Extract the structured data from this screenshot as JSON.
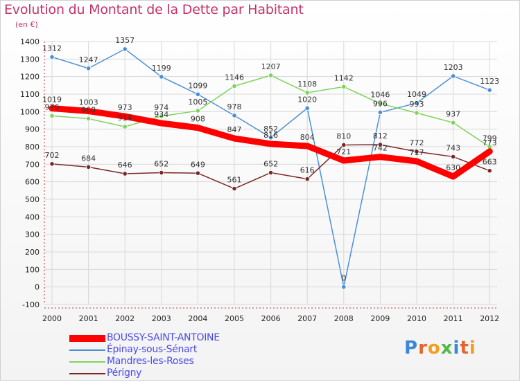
{
  "title": "Evolution du Montant de la Dette par Habitant",
  "subtitle": "(en €)",
  "brand": {
    "text": "Proxiti",
    "colors": [
      "#3a86d8",
      "#e8632b",
      "#f0a01e",
      "#52b849",
      "#3a86d8",
      "#e8632b",
      "#f0a01e"
    ]
  },
  "chart_data": {
    "type": "line",
    "x": [
      "2000",
      "2001",
      "2002",
      "2003",
      "2004",
      "2005",
      "2006",
      "2007",
      "2008",
      "2009",
      "2010",
      "2011",
      "2012"
    ],
    "ylim": [
      -100,
      1400
    ],
    "yticks": [
      -100,
      0,
      100,
      200,
      300,
      400,
      500,
      600,
      700,
      800,
      900,
      1000,
      1100,
      1200,
      1300,
      1400
    ],
    "grid": true,
    "legend_position": "bottom-left",
    "series": [
      {
        "name": "BOUSSY-SAINT-ANTOINE",
        "color": "#ff0000",
        "values": [
          1019,
          1003,
          973,
          934,
          908,
          847,
          816,
          804,
          721,
          742,
          717,
          630,
          773
        ]
      },
      {
        "name": "Épinay-sous-Sénart",
        "color": "#4a90d9",
        "values": [
          1312,
          1247,
          1357,
          1199,
          1099,
          978,
          852,
          1020,
          0,
          996,
          1049,
          1203,
          1123
        ]
      },
      {
        "name": "Mandres-les-Roses",
        "color": "#7ed35a",
        "values": [
          976,
          960,
          914,
          974,
          1005,
          1146,
          1207,
          1108,
          1142,
          1046,
          993,
          937,
          799
        ]
      },
      {
        "name": "Périgny",
        "color": "#7b2828",
        "values": [
          702,
          684,
          646,
          652,
          649,
          561,
          652,
          616,
          810,
          812,
          772,
          743,
          663
        ]
      }
    ],
    "labels": [
      [
        1019,
        1003,
        973,
        934,
        908,
        847,
        816,
        804,
        721,
        742,
        717,
        630,
        773
      ],
      [
        1312,
        1247,
        1357,
        1199,
        1099,
        978,
        852,
        1020,
        0,
        996,
        1049,
        1203,
        1123
      ],
      [
        976,
        960,
        914,
        974,
        1005,
        1146,
        1207,
        1108,
        1142,
        1046,
        993,
        937,
        799
      ],
      [
        702,
        684,
        646,
        652,
        649,
        561,
        652,
        616,
        810,
        812,
        772,
        743,
        663
      ]
    ]
  }
}
